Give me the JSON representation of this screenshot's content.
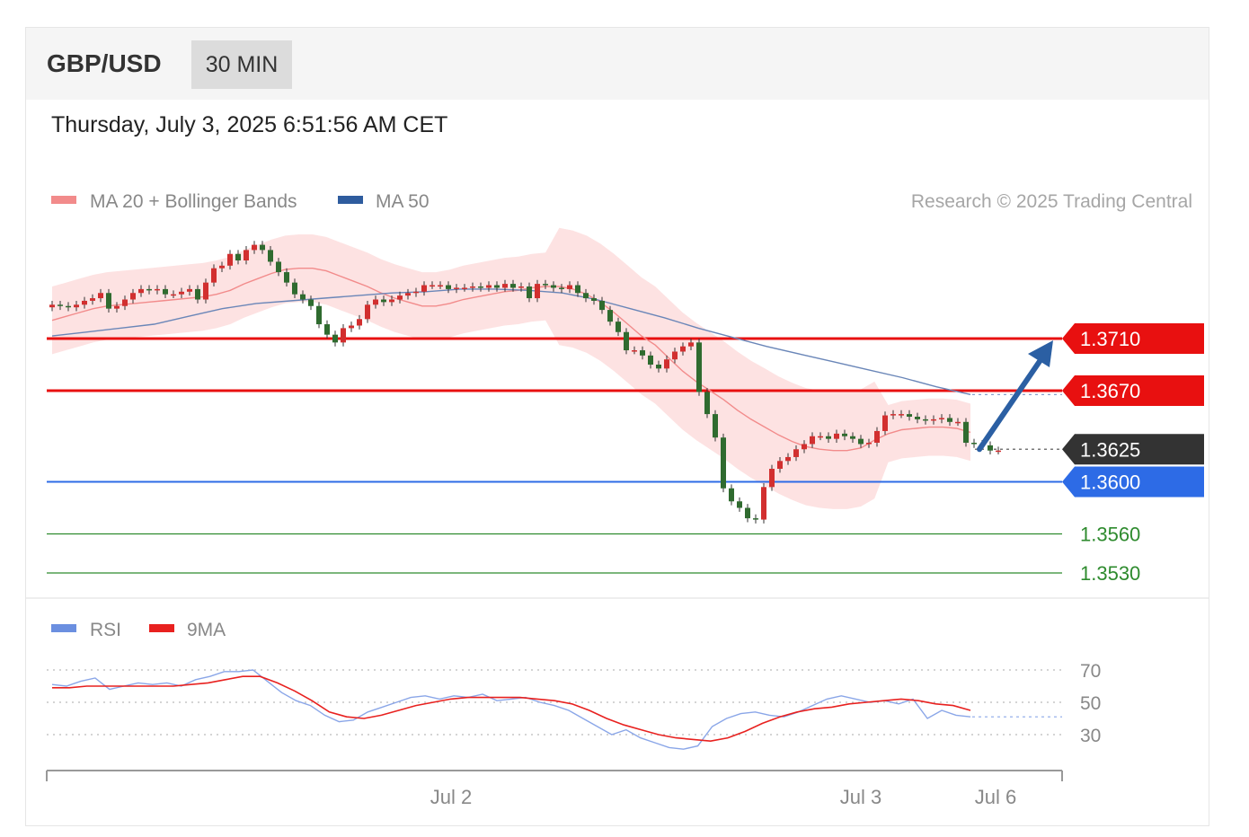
{
  "header": {
    "symbol": "GBP/USD",
    "timeframe": "30 MIN",
    "datetime": "Thursday, July 3, 2025 6:51:56 AM CET"
  },
  "legend": {
    "ma20_bb": {
      "label": "MA 20 + Bollinger Bands",
      "color": "#f28b8b"
    },
    "ma50": {
      "label": "MA 50",
      "color": "#2e5c9e"
    },
    "copyright": "Research © 2025 Trading Central"
  },
  "rsi_legend": {
    "rsi": {
      "label": "RSI",
      "color": "#6b8fe0"
    },
    "ma9": {
      "label": "9MA",
      "color": "#e8211f"
    }
  },
  "colors": {
    "up": "#d22f2f",
    "down": "#2f6b2f",
    "resistance": "#e81010",
    "pivot": "#333333",
    "support": "#2d6be6",
    "support2": "#2e8b2e",
    "arrow": "#2b5fa3"
  },
  "chart_data": {
    "type": "candlestick",
    "y_axis_range": [
      1.352,
      1.38
    ],
    "x_tick_labels": [
      "Jul 2",
      "Jul 3",
      "Jul 6"
    ],
    "levels": [
      {
        "value": "1.3710",
        "kind": "resistance",
        "color": "#e81010"
      },
      {
        "value": "1.3670",
        "kind": "resistance",
        "color": "#e81010"
      },
      {
        "value": "1.3625",
        "kind": "last",
        "color": "#333333"
      },
      {
        "value": "1.3600",
        "kind": "support",
        "color": "#2d6be6"
      },
      {
        "value": "1.3560",
        "kind": "support",
        "color": "#2e8b2e"
      },
      {
        "value": "1.3530",
        "kind": "support",
        "color": "#2e8b2e"
      }
    ],
    "forecast_arrow": {
      "from": 1.3625,
      "to": 1.371
    },
    "close": [
      1.3736,
      1.3735,
      1.3734,
      1.3736,
      1.3739,
      1.3741,
      1.3745,
      1.3733,
      1.3735,
      1.374,
      1.3745,
      1.3748,
      1.3747,
      1.3748,
      1.3744,
      1.3744,
      1.3746,
      1.3748,
      1.374,
      1.3753,
      1.3764,
      1.3766,
      1.3775,
      1.377,
      1.3778,
      1.3782,
      1.3778,
      1.3769,
      1.3761,
      1.3753,
      1.3744,
      1.374,
      1.3735,
      1.3721,
      1.3713,
      1.3707,
      1.3718,
      1.372,
      1.3725,
      1.3736,
      1.374,
      1.3738,
      1.374,
      1.3743,
      1.3745,
      1.3746,
      1.3751,
      1.3751,
      1.3751,
      1.3748,
      1.3749,
      1.3749,
      1.375,
      1.3749,
      1.3751,
      1.3749,
      1.3752,
      1.3749,
      1.375,
      1.3741,
      1.3752,
      1.3751,
      1.3749,
      1.3748,
      1.3751,
      1.3745,
      1.3741,
      1.3739,
      1.3732,
      1.3723,
      1.3715,
      1.3701,
      1.3701,
      1.3697,
      1.369,
      1.3687,
      1.3694,
      1.37,
      1.3704,
      1.3707,
      1.3669,
      1.3652,
      1.3634,
      1.3595,
      1.3585,
      1.358,
      1.3572,
      1.3571,
      1.3596,
      1.361,
      1.3616,
      1.3619,
      1.3625,
      1.3629,
      1.3635,
      1.3635,
      1.3633,
      1.3637,
      1.3635,
      1.3633,
      1.3629,
      1.363,
      1.3639,
      1.3651,
      1.3652,
      1.3652,
      1.365,
      1.3648,
      1.3647,
      1.3648,
      1.3649,
      1.3646,
      1.3646,
      1.363,
      1.3629,
      1.3628,
      1.3624,
      1.3624
    ],
    "ma20": [
      1.3724,
      1.3727,
      1.373,
      1.3733,
      1.3735,
      1.3736,
      1.3737,
      1.3738,
      1.3739,
      1.374,
      1.3741,
      1.3742,
      1.3744,
      1.3747,
      1.3752,
      1.3756,
      1.376,
      1.3763,
      1.3764,
      1.3764,
      1.3762,
      1.3758,
      1.3754,
      1.375,
      1.3745,
      1.3741,
      1.3738,
      1.3735,
      1.3735,
      1.3737,
      1.374,
      1.3742,
      1.3744,
      1.3746,
      1.3747,
      1.3749,
      1.375,
      1.375,
      1.3748,
      1.3744,
      1.3738,
      1.373,
      1.3721,
      1.3712,
      1.3705,
      1.3695,
      1.3685,
      1.3677,
      1.367,
      1.3663,
      1.3655,
      1.3648,
      1.3642,
      1.3636,
      1.3631,
      1.3627,
      1.3625,
      1.3624,
      1.3624,
      1.3626,
      1.3632,
      1.3637,
      1.364,
      1.3641,
      1.3642,
      1.3642,
      1.3641,
      1.3638
    ],
    "ma50": [
      1.3712,
      1.3715,
      1.3718,
      1.3721,
      1.3727,
      1.3733,
      1.3737,
      1.3739,
      1.3741,
      1.3743,
      1.3745,
      1.3746,
      1.3748,
      1.3748,
      1.3747,
      1.3745,
      1.374,
      1.3733,
      1.3726,
      1.3718,
      1.3711,
      1.3704,
      1.3698,
      1.3692,
      1.3686,
      1.368,
      1.3673,
      1.3667
    ],
    "rsi": [
      61,
      60,
      63,
      65,
      58,
      60,
      62,
      61,
      62,
      60,
      64,
      66,
      69,
      69,
      70,
      63,
      56,
      51,
      48,
      42,
      38,
      39,
      44,
      47,
      50,
      53,
      54,
      52,
      54,
      53,
      55,
      51,
      52,
      53,
      50,
      48,
      45,
      40,
      35,
      30,
      33,
      28,
      25,
      22,
      21,
      23,
      35,
      40,
      43,
      44,
      42,
      41,
      44,
      48,
      52,
      54,
      52,
      50,
      51,
      49,
      52,
      40,
      45,
      42,
      41
    ],
    "rsi_ma9": [
      59,
      59,
      60,
      60,
      60,
      60,
      60,
      60,
      61,
      62,
      64,
      66,
      66,
      62,
      57,
      51,
      44,
      41,
      40,
      42,
      45,
      48,
      50,
      52,
      53,
      53,
      53,
      53,
      52,
      51,
      49,
      45,
      40,
      36,
      33,
      30,
      28,
      27,
      26,
      28,
      32,
      37,
      41,
      44,
      46,
      47,
      49,
      50,
      51,
      52,
      51,
      49,
      48,
      45
    ],
    "rsi_ticks": [
      "70",
      "50",
      "30"
    ]
  }
}
